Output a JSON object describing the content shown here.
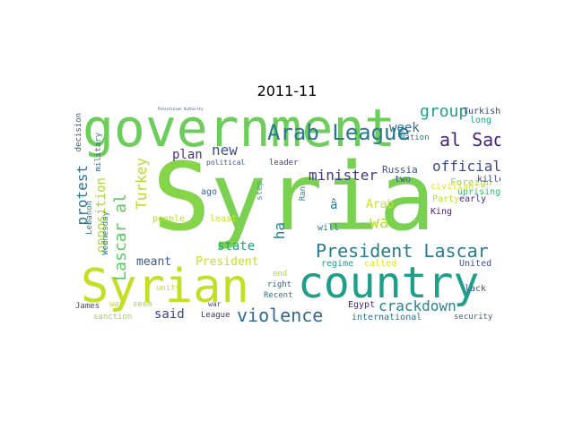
{
  "title": "2011-11",
  "words": [
    {
      "text": "Syria",
      "color": "#7ad151"
    },
    {
      "text": "S",
      "color": "#86d549"
    },
    {
      "text": "government",
      "color": "#6ccd5a"
    },
    {
      "text": "Syrian",
      "color": "#c2df23"
    },
    {
      "text": "country",
      "color": "#1f9e89"
    },
    {
      "text": "Arab League",
      "color": "#2a788e"
    },
    {
      "text": "President Lascar",
      "color": "#287d8e"
    },
    {
      "text": "al Sad",
      "color": "#482677"
    },
    {
      "text": "violence",
      "color": "#31688e"
    },
    {
      "text": "crackdown",
      "color": "#26828e"
    },
    {
      "text": "official",
      "color": "#3e4a89"
    },
    {
      "text": "group",
      "color": "#1fa088"
    },
    {
      "text": "minister",
      "color": "#443983"
    },
    {
      "text": "new",
      "color": "#3b528b"
    },
    {
      "text": "Lascar al",
      "color": "#5ec962"
    },
    {
      "text": "Turkey",
      "color": "#b5de2b"
    },
    {
      "text": "protest",
      "color": "#2c728e"
    },
    {
      "text": "opposition",
      "color": "#a8db34"
    },
    {
      "text": "ha",
      "color": "#25848e"
    },
    {
      "text": "wa",
      "color": "#b8de29"
    },
    {
      "text": "week",
      "color": "#2f6c8e"
    },
    {
      "text": "plan",
      "color": "#46327e"
    },
    {
      "text": "said",
      "color": "#414487"
    },
    {
      "text": "state",
      "color": "#20a386"
    },
    {
      "text": "meant",
      "color": "#365d8d"
    },
    {
      "text": "President",
      "color": "#c8e020"
    },
    {
      "text": "Arab",
      "color": "#d2e21b"
    },
    {
      "text": "â",
      "color": "#2a768e"
    },
    {
      "text": "Russia",
      "color": "#3b528b"
    },
    {
      "text": "Foreign",
      "color": "#9fda3a"
    },
    {
      "text": "Party",
      "color": "#bddf26"
    },
    {
      "text": "civilian",
      "color": "#dde318"
    },
    {
      "text": "uprising",
      "color": "#35b779"
    },
    {
      "text": "King",
      "color": "#482475"
    },
    {
      "text": "killed",
      "color": "#414487"
    },
    {
      "text": "early",
      "color": "#46307e"
    },
    {
      "text": "Turkish",
      "color": "#3f4889"
    },
    {
      "text": "long",
      "color": "#22a884"
    },
    {
      "text": "Nation",
      "color": "#287c8e"
    },
    {
      "text": "decision",
      "color": "#3b528b"
    },
    {
      "text": "Lebanon",
      "color": "#25858e"
    },
    {
      "text": "military",
      "color": "#2d708e"
    },
    {
      "text": "Wednesday",
      "color": "#287c8e"
    },
    {
      "text": "people",
      "color": "#b5de2b"
    },
    {
      "text": "least",
      "color": "#d0e11c"
    },
    {
      "text": "ago",
      "color": "#38598c"
    },
    {
      "text": "political",
      "color": "#3b528b"
    },
    {
      "text": "leader",
      "color": "#3e4c8a"
    },
    {
      "text": "step",
      "color": "#29af7f"
    },
    {
      "text": "Ran",
      "color": "#26828e"
    },
    {
      "text": "will",
      "color": "#2c738e"
    },
    {
      "text": "two",
      "color": "#38598c"
    },
    {
      "text": "regime",
      "color": "#1f9a8a"
    },
    {
      "text": "called",
      "color": "#dde318"
    },
    {
      "text": "United",
      "color": "#3e4c8a"
    },
    {
      "text": "end",
      "color": "#addc30"
    },
    {
      "text": "right",
      "color": "#31688e"
    },
    {
      "text": "Recent",
      "color": "#2c728e"
    },
    {
      "text": "unity",
      "color": "#c8e020"
    },
    {
      "text": "way",
      "color": "#bddf26"
    },
    {
      "text": "seem",
      "color": "#9fda3a"
    },
    {
      "text": "war",
      "color": "#3e4a89"
    },
    {
      "text": "League",
      "color": "#472d7b"
    },
    {
      "text": "James",
      "color": "#3e4a89"
    },
    {
      "text": "sanction",
      "color": "#98d83e"
    },
    {
      "text": "Egypt",
      "color": "#482878"
    },
    {
      "text": "international",
      "color": "#2d708e"
    },
    {
      "text": "security",
      "color": "#33638d"
    },
    {
      "text": "lack",
      "color": "#3b528b"
    },
    {
      "text": "Palestinian Authority",
      "color": "#3e4a89"
    }
  ]
}
